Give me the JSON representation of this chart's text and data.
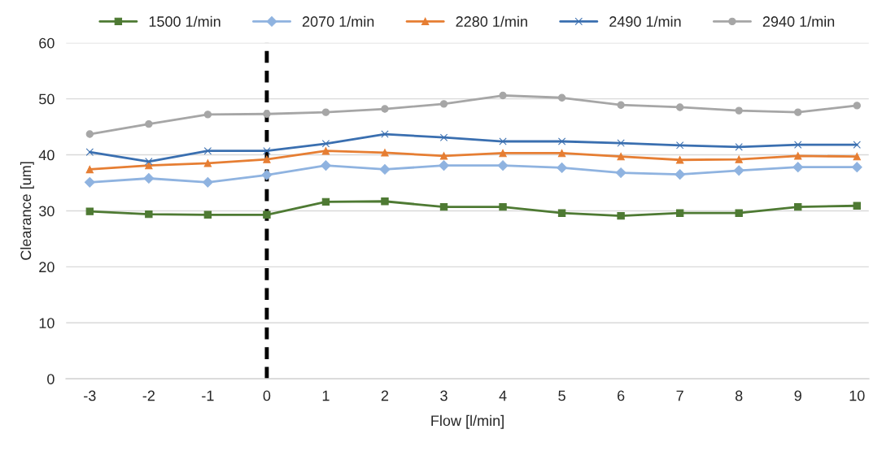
{
  "chart_data": {
    "type": "line",
    "xlabel": "Flow [l/min]",
    "ylabel": "Clearance [um]",
    "x": [
      -3,
      -2,
      -1,
      0,
      1,
      2,
      3,
      4,
      5,
      6,
      7,
      8,
      9,
      10
    ],
    "xlim": [
      -3.4,
      10.2
    ],
    "xticks": [
      -3,
      -2,
      -1,
      0,
      1,
      2,
      3,
      4,
      5,
      6,
      7,
      8,
      9,
      10
    ],
    "ylim": [
      0,
      60
    ],
    "yticks": [
      0,
      10,
      20,
      30,
      40,
      50,
      60
    ],
    "grid": "y",
    "legend": "top",
    "series": [
      {
        "name": "1500 1/min",
        "color": "#4e7a33",
        "marker": "square",
        "values": [
          29.9,
          29.4,
          29.3,
          29.3,
          31.6,
          31.7,
          30.7,
          30.7,
          29.6,
          29.1,
          29.6,
          29.6,
          30.7,
          30.9
        ]
      },
      {
        "name": "2070 1/min",
        "color": "#8fb3e0",
        "marker": "diamond",
        "values": [
          35.1,
          35.8,
          35.1,
          36.4,
          38.1,
          37.4,
          38.1,
          38.1,
          37.7,
          36.8,
          36.5,
          37.2,
          37.8,
          37.8
        ]
      },
      {
        "name": "2280 1/min",
        "color": "#e67e33",
        "marker": "triangle",
        "values": [
          37.4,
          38.1,
          38.5,
          39.2,
          40.7,
          40.4,
          39.8,
          40.3,
          40.3,
          39.7,
          39.1,
          39.2,
          39.8,
          39.7
        ]
      },
      {
        "name": "2490 1/min",
        "color": "#3a6fb0",
        "marker": "cross",
        "values": [
          40.5,
          38.8,
          40.7,
          40.7,
          42.0,
          43.7,
          43.1,
          42.4,
          42.4,
          42.1,
          41.7,
          41.4,
          41.8,
          41.8
        ]
      },
      {
        "name": "2940 1/min",
        "color": "#a6a6a6",
        "marker": "circle",
        "values": [
          43.7,
          45.5,
          47.2,
          47.3,
          47.6,
          48.2,
          49.1,
          50.6,
          50.2,
          48.9,
          48.5,
          47.9,
          47.6,
          48.8
        ]
      }
    ],
    "ref_lines": [
      {
        "axis": "x",
        "value": 0,
        "color": "#000000",
        "line_style": "dashed"
      }
    ]
  }
}
